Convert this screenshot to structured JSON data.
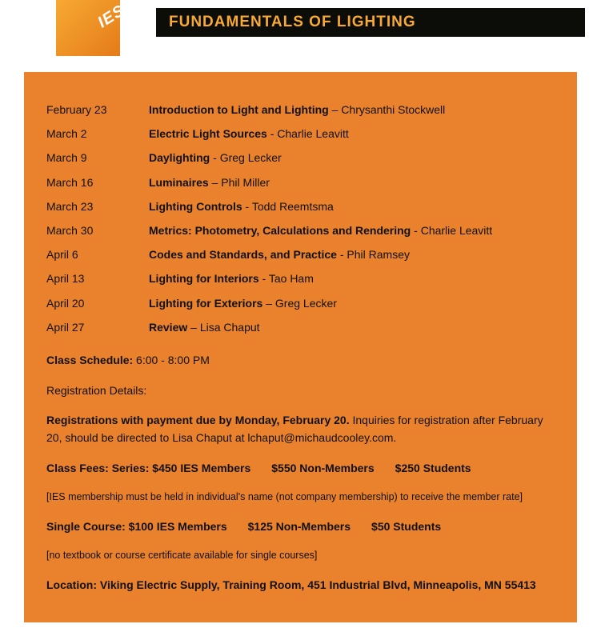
{
  "logo_text": "IES",
  "title": "FUNDAMENTALS OF LIGHTING",
  "schedule": [
    {
      "date": "February 23",
      "topic": "Introduction to Light and Lighting",
      "sep": " – ",
      "instructor": "Chrysanthi Stockwell"
    },
    {
      "date": "March 2",
      "topic": "Electric Light Sources",
      "sep": " - ",
      "instructor": "Charlie Leavitt"
    },
    {
      "date": "March 9",
      "topic": "Daylighting",
      "sep": " - ",
      "instructor": "Greg Lecker"
    },
    {
      "date": "March 16",
      "topic": "Luminaires",
      "sep": " – ",
      "instructor": "Phil Miller"
    },
    {
      "date": "March 23",
      "topic": "Lighting Controls",
      "sep": " - ",
      "instructor": "Todd Reemtsma"
    },
    {
      "date": "March 30",
      "topic": "Metrics: Photometry, Calculations and Rendering",
      "sep": " - ",
      "instructor": "Charlie Leavitt"
    },
    {
      "date": "April 6",
      "topic": "Codes and Standards, and Practice",
      "sep": " - ",
      "instructor": "Phil Ramsey"
    },
    {
      "date": "April 13",
      "topic": "Lighting for Interiors",
      "sep": " - ",
      "instructor": "Tao Ham"
    },
    {
      "date": "April 20",
      "topic": "Lighting for Exteriors",
      "sep": " – ",
      "instructor": "Greg Lecker"
    },
    {
      "date": "April 27",
      "topic": "Review",
      "sep": " – ",
      "instructor": "Lisa Chaput"
    }
  ],
  "class_schedule_label": "Class Schedule:",
  "class_schedule_time": "6:00 - 8:00 PM",
  "reg_heading": "Registration Details:",
  "reg_bold": "Registrations with payment due by Monday, February 20.",
  "reg_rest": " Inquiries for registration after February 20, should be directed to Lisa Chaput at lchaput@michaudcooley.com.",
  "class_fees_label": "Class Fees: Series: $450 IES Members",
  "class_fees_mid": "$550 Non-Members",
  "class_fees_end": "$250 Students",
  "class_fees_note": "[IES membership must be held in individual's name (not company membership) to receive the member rate]",
  "single_label": "Single Course: $100 IES Members",
  "single_mid": "$125 Non-Members",
  "single_end": "$50 Students",
  "single_note": "[no textbook or course certificate available for single courses]",
  "location_label": "Location: Viking Electric Supply, Training Room, 451 Industrial Blvd, Minneapolis, MN 55413"
}
